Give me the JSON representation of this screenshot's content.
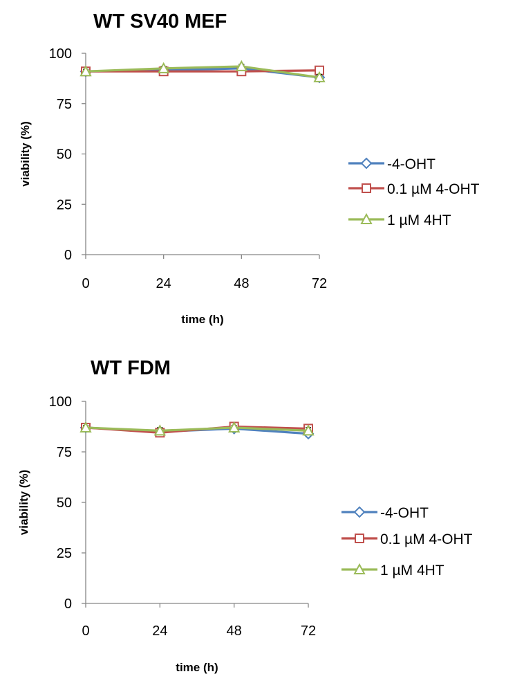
{
  "chart_data": [
    {
      "type": "line",
      "title": "WT SV40 MEF",
      "xlabel": "time (h)",
      "ylabel": "viability (%)",
      "x": [
        0,
        24,
        48,
        72
      ],
      "x_tick_labels": [
        "0",
        "24",
        "48",
        "72"
      ],
      "y_tick_labels": [
        "0",
        "25",
        "50",
        "75",
        "100"
      ],
      "ylim": [
        0,
        100
      ],
      "grid": false,
      "legend_position": "right",
      "series": [
        {
          "name": "-4-OHT",
          "values": [
            91,
            91.5,
            92.5,
            88
          ],
          "errors": [
            1,
            1,
            1.5,
            1.5
          ],
          "color": "#4f81bd",
          "marker": "diamond"
        },
        {
          "name": "0.1 µM 4-OHT",
          "values": [
            91,
            91,
            91,
            91.5
          ],
          "errors": [
            1,
            1,
            1,
            1.5
          ],
          "color": "#c0504d",
          "marker": "square"
        },
        {
          "name": "1 µM 4HT",
          "values": [
            91,
            92.5,
            93.5,
            88
          ],
          "errors": [
            1,
            1,
            1,
            1.5
          ],
          "color": "#9bbb59",
          "marker": "triangle"
        }
      ]
    },
    {
      "type": "line",
      "title": "WT FDM",
      "xlabel": "time (h)",
      "ylabel": "viability (%)",
      "x": [
        0,
        24,
        48,
        72
      ],
      "x_tick_labels": [
        "0",
        "24",
        "48",
        "72"
      ],
      "y_tick_labels": [
        "0",
        "25",
        "50",
        "75",
        "100"
      ],
      "ylim": [
        0,
        100
      ],
      "grid": false,
      "legend_position": "right",
      "series": [
        {
          "name": "-4-OHT",
          "values": [
            87,
            85,
            86.5,
            84
          ],
          "errors": [
            1,
            1.5,
            1,
            1.5
          ],
          "color": "#4f81bd",
          "marker": "diamond"
        },
        {
          "name": "0.1 µM 4-OHT",
          "values": [
            87,
            84.5,
            87.5,
            86.5
          ],
          "errors": [
            1,
            1.5,
            1,
            1.5
          ],
          "color": "#c0504d",
          "marker": "square"
        },
        {
          "name": "1 µM 4HT",
          "values": [
            87,
            85.5,
            87,
            85.5
          ],
          "errors": [
            1,
            1.5,
            1,
            1.5
          ],
          "color": "#9bbb59",
          "marker": "triangle"
        }
      ]
    }
  ]
}
